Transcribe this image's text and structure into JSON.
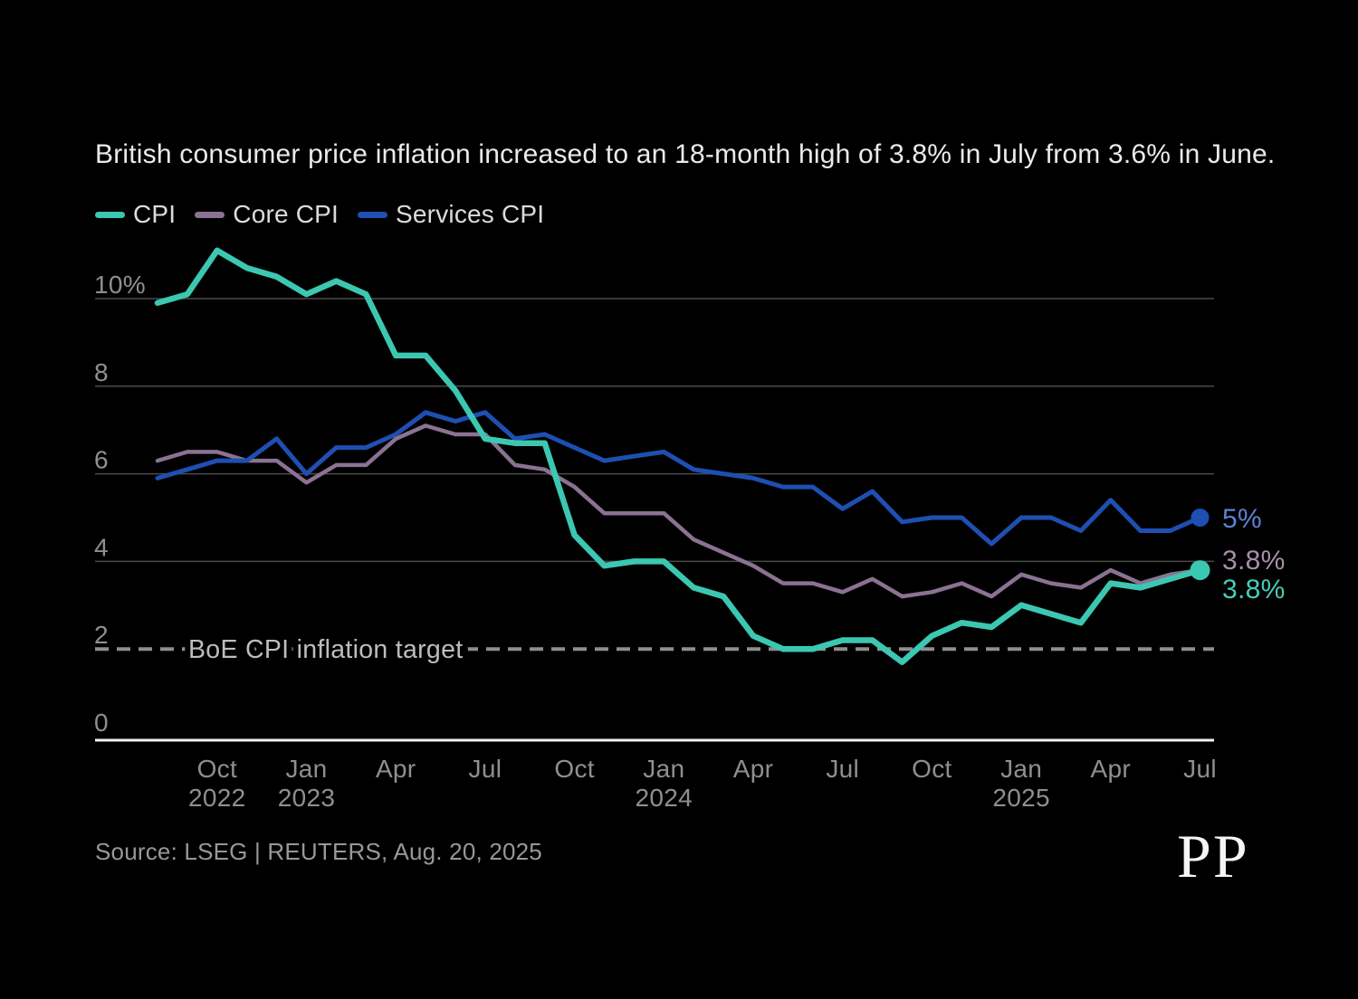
{
  "title": "British consumer price inflation increased to an 18-month high of 3.8% in July from 3.6% in June.",
  "source": "Source: LSEG | REUTERS, Aug. 20, 2025",
  "logo": "PP",
  "legend": [
    {
      "label": "CPI",
      "color": "#3CC7B2"
    },
    {
      "label": "Core CPI",
      "color": "#8B7292"
    },
    {
      "label": "Services CPI",
      "color": "#1E4FB2"
    }
  ],
  "colors": {
    "background": "#000000",
    "title_text": "#EAEAEA",
    "axis_text": "#8F8F8F",
    "gridline": "#4A4A4A",
    "baseline": "#F2F2F2",
    "target_line": "#8E8E8E",
    "target_label": "#BDBDBD"
  },
  "chart_data": {
    "type": "line",
    "grid": "horizontal",
    "legend_position": "top-left",
    "ylim": [
      0,
      11.6
    ],
    "x": [
      "Aug 2022",
      "Sep 2022",
      "Oct 2022",
      "Nov 2022",
      "Dec 2022",
      "Jan 2023",
      "Feb 2023",
      "Mar 2023",
      "Apr 2023",
      "May 2023",
      "Jun 2023",
      "Jul 2023",
      "Aug 2023",
      "Sep 2023",
      "Oct 2023",
      "Nov 2023",
      "Dec 2023",
      "Jan 2024",
      "Feb 2024",
      "Mar 2024",
      "Apr 2024",
      "May 2024",
      "Jun 2024",
      "Jul 2024",
      "Aug 2024",
      "Sep 2024",
      "Oct 2024",
      "Nov 2024",
      "Dec 2024",
      "Jan 2025",
      "Feb 2025",
      "Mar 2025",
      "Apr 2025",
      "May 2025",
      "Jun 2025",
      "Jul 2025"
    ],
    "series": [
      {
        "name": "Core CPI",
        "color": "#8B7292",
        "end_label": "3.8%",
        "end_label_color": "#A78FA9",
        "end_dot": false,
        "line_width": 4.5,
        "values": [
          6.3,
          6.5,
          6.5,
          6.3,
          6.3,
          5.8,
          6.2,
          6.2,
          6.8,
          7.1,
          6.9,
          6.9,
          6.2,
          6.1,
          5.7,
          5.1,
          5.1,
          5.1,
          4.5,
          4.2,
          3.9,
          3.5,
          3.5,
          3.3,
          3.6,
          3.2,
          3.3,
          3.5,
          3.2,
          3.7,
          3.5,
          3.4,
          3.8,
          3.5,
          3.7,
          3.8
        ]
      },
      {
        "name": "Services CPI",
        "color": "#1E4FB2",
        "end_label": "5%",
        "end_label_color": "#5F80D4",
        "end_dot": true,
        "line_width": 5,
        "values": [
          5.9,
          6.1,
          6.3,
          6.3,
          6.8,
          6.0,
          6.6,
          6.6,
          6.9,
          7.4,
          7.2,
          7.4,
          6.8,
          6.9,
          6.6,
          6.3,
          6.4,
          6.5,
          6.1,
          6.0,
          5.9,
          5.7,
          5.7,
          5.2,
          5.6,
          4.9,
          5.0,
          5.0,
          4.4,
          5.0,
          5.0,
          4.7,
          5.4,
          4.7,
          4.7,
          5.0
        ]
      },
      {
        "name": "CPI",
        "color": "#3CC7B2",
        "end_label": "3.8%",
        "end_label_color": "#45CDB7",
        "end_dot": true,
        "line_width": 6.5,
        "values": [
          9.9,
          10.1,
          11.1,
          10.7,
          10.5,
          10.1,
          10.4,
          10.1,
          8.7,
          8.7,
          7.9,
          6.8,
          6.7,
          6.7,
          4.6,
          3.9,
          4.0,
          4.0,
          3.4,
          3.2,
          2.3,
          2.0,
          2.0,
          2.2,
          2.2,
          1.7,
          2.3,
          2.6,
          2.5,
          3.0,
          2.8,
          2.6,
          3.5,
          3.4,
          3.6,
          3.8
        ]
      }
    ],
    "yticks": [
      {
        "v": 0,
        "label": "0"
      },
      {
        "v": 2,
        "label": "2"
      },
      {
        "v": 4,
        "label": "4"
      },
      {
        "v": 6,
        "label": "6"
      },
      {
        "v": 8,
        "label": "8"
      },
      {
        "v": 10,
        "label": "10%"
      }
    ],
    "xticks": [
      {
        "i": 2,
        "month": "Oct",
        "year": "2022"
      },
      {
        "i": 5,
        "month": "Jan",
        "year": "2023"
      },
      {
        "i": 8,
        "month": "Apr"
      },
      {
        "i": 11,
        "month": "Jul"
      },
      {
        "i": 14,
        "month": "Oct"
      },
      {
        "i": 17,
        "month": "Jan",
        "year": "2024"
      },
      {
        "i": 20,
        "month": "Apr"
      },
      {
        "i": 23,
        "month": "Jul"
      },
      {
        "i": 26,
        "month": "Oct"
      },
      {
        "i": 29,
        "month": "Jan",
        "year": "2025"
      },
      {
        "i": 32,
        "month": "Apr"
      },
      {
        "i": 35,
        "month": "Jul"
      }
    ],
    "target_line": {
      "value": 2,
      "label": "BoE CPI inflation target"
    }
  }
}
